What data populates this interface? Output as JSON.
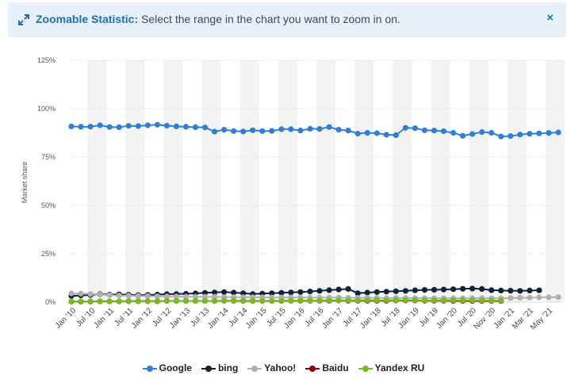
{
  "banner": {
    "title": "Zoomable Statistic:",
    "message": " Select the range in the chart you want to zoom in on.",
    "close_symbol": "×",
    "icon": "expand-arrows-icon"
  },
  "chart_data": {
    "type": "line",
    "ylabel": "Market share",
    "y_ticks": [
      "0%",
      "25%",
      "50%",
      "75%",
      "100%",
      "125%"
    ],
    "ylim": [
      0,
      125
    ],
    "x_tick_labels": [
      "Jan '10",
      "Jul '10",
      "Jan '11",
      "Jul '11",
      "Jan '12",
      "Jul '12",
      "Jan '13",
      "Jul '13",
      "Jan '14",
      "Jul '14",
      "Jan '15",
      "Jul '15",
      "Jan '16",
      "Jul '16",
      "Jan '17",
      "Jul '17",
      "Jan '18",
      "Jul '18",
      "Jan '19",
      "Jul '19",
      "Jan '20",
      "Jul '20",
      "Nov '20",
      "Jan '21",
      "Mar '21",
      "May '21"
    ],
    "grid": true,
    "legend_position": "bottom",
    "series": [
      {
        "name": "Google",
        "color": "#2f7ed8",
        "start": "2010-01",
        "step": "quarter",
        "values": [
          90.8,
          90.6,
          90.7,
          91.4,
          90.5,
          90.4,
          91.1,
          91.0,
          91.4,
          91.7,
          91.2,
          90.8,
          90.6,
          90.4,
          90.3,
          88.1,
          89.1,
          88.4,
          88.2,
          88.8,
          88.4,
          88.5,
          89.4,
          89.4,
          88.7,
          89.6,
          89.5,
          90.5,
          89.1,
          88.7,
          87.1,
          87.5,
          87.3,
          86.5,
          86.3,
          90.1,
          89.9,
          88.8,
          88.7,
          88.3,
          87.5,
          86.0,
          86.9,
          87.9,
          87.5,
          85.6,
          85.8,
          86.6,
          87.0,
          87.2,
          87.4,
          87.7
        ]
      },
      {
        "name": "bing",
        "color": "#0d233a",
        "start": "2010-01",
        "step": "quarter",
        "values": [
          3.2,
          3.5,
          3.7,
          4.1,
          3.9,
          4.0,
          3.8,
          3.6,
          3.7,
          3.9,
          4.1,
          4.2,
          4.3,
          4.5,
          4.8,
          5.0,
          5.2,
          4.9,
          4.6,
          4.2,
          4.4,
          4.6,
          4.8,
          5.0,
          5.2,
          5.5,
          5.8,
          6.2,
          6.5,
          6.8,
          4.6,
          4.9,
          5.2,
          5.4,
          5.6,
          5.8,
          6.1,
          6.3,
          6.4,
          6.5,
          6.7,
          6.9,
          7.0,
          6.8,
          6.2,
          6.0,
          5.9,
          5.8,
          6.0,
          6.1
        ]
      },
      {
        "name": "Yahoo!",
        "color": "#b0b0b0",
        "start": "2010-01",
        "step": "quarter",
        "values": [
          4.5,
          4.4,
          4.2,
          3.9,
          3.6,
          3.4,
          3.3,
          3.2,
          3.1,
          3.0,
          2.9,
          2.9,
          2.8,
          2.8,
          2.7,
          2.7,
          2.6,
          2.6,
          2.5,
          2.5,
          2.5,
          2.4,
          2.4,
          2.4,
          2.4,
          2.3,
          2.3,
          2.3,
          2.3,
          2.2,
          2.2,
          2.2,
          2.2,
          2.1,
          2.1,
          2.1,
          2.1,
          2.1,
          2.0,
          2.0,
          2.0,
          2.0,
          2.0,
          2.0,
          2.0,
          2.0,
          2.1,
          2.2,
          2.3,
          2.4,
          2.5,
          2.6
        ]
      },
      {
        "name": "Baidu",
        "color": "#8b0000",
        "start": "2010-01",
        "step": "quarter",
        "values": [
          0.3,
          0.3,
          0.3,
          0.4,
          0.4,
          0.4,
          0.5,
          0.5,
          0.5,
          0.5,
          0.6,
          0.6,
          0.6,
          0.6,
          0.6,
          0.6,
          0.7,
          0.7,
          0.6,
          0.6,
          0.6,
          0.6,
          0.6,
          0.7,
          0.7,
          0.7,
          0.7,
          0.7,
          0.8,
          0.7,
          0.7,
          0.7,
          0.7,
          0.7,
          0.8,
          0.8,
          0.8,
          0.7,
          0.7,
          0.7,
          0.6,
          0.6,
          0.6,
          0.6,
          0.6,
          0.6
        ]
      },
      {
        "name": "Yandex RU",
        "color": "#77bb22",
        "start": "2010-01",
        "step": "quarter",
        "values": [
          0.4,
          0.4,
          0.4,
          0.5,
          0.5,
          0.5,
          0.5,
          0.5,
          0.5,
          0.6,
          0.6,
          0.6,
          0.6,
          0.6,
          0.6,
          0.6,
          0.7,
          0.7,
          0.7,
          0.7,
          0.7,
          0.7,
          0.7,
          0.7,
          0.8,
          0.8,
          0.8,
          0.9,
          0.9,
          0.9,
          0.9,
          1.0,
          1.0,
          1.0,
          1.0,
          1.0,
          1.0,
          0.9,
          0.9,
          0.9,
          0.9,
          0.9,
          0.9,
          0.9,
          0.8,
          0.8
        ]
      }
    ]
  }
}
